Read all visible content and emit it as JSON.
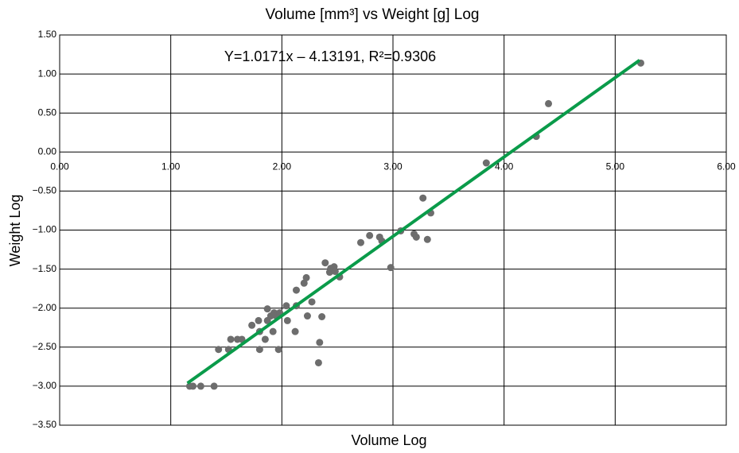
{
  "chart_data": {
    "type": "scatter",
    "title": "Volume [mm³] vs Weight [g] Log",
    "x_label": "Volume Log",
    "y_label": "Weight Log",
    "annotation": "Y=1.0171x – 4.13191, R²=0.9306",
    "xlim": [
      0,
      6
    ],
    "ylim": [
      -3.5,
      1.5
    ],
    "xticks": [
      {
        "value": 0,
        "label": "0.00"
      },
      {
        "value": 1,
        "label": "1.00"
      },
      {
        "value": 2,
        "label": "2.00"
      },
      {
        "value": 3,
        "label": "3.00"
      },
      {
        "value": 4,
        "label": "4.00"
      },
      {
        "value": 5,
        "label": "5.00"
      },
      {
        "value": 6,
        "label": "6.00"
      }
    ],
    "yticks": [
      {
        "value": 1.5,
        "label": "1.50"
      },
      {
        "value": 1,
        "label": "1.00"
      },
      {
        "value": 0.5,
        "label": "0.50"
      },
      {
        "value": 0,
        "label": "0.00"
      },
      {
        "value": -0.5,
        "label": "−0.50"
      },
      {
        "value": -1,
        "label": "−1.00"
      },
      {
        "value": -1.5,
        "label": "−1.50"
      },
      {
        "value": -2,
        "label": "−2.00"
      },
      {
        "value": -2.5,
        "label": "−2.50"
      },
      {
        "value": -3,
        "label": "−3.00"
      },
      {
        "value": -3.5,
        "label": "−3.50"
      }
    ],
    "grid": true,
    "color": "#6d6d6d",
    "x": [
      1.17,
      1.2,
      1.27,
      1.39,
      1.43,
      1.52,
      1.54,
      1.6,
      1.64,
      1.73,
      1.79,
      1.8,
      1.8,
      1.85,
      1.87,
      1.87,
      1.9,
      1.92,
      1.93,
      1.95,
      1.97,
      1.98,
      2.04,
      2.05,
      2.12,
      2.13,
      2.13,
      2.2,
      2.22,
      2.23,
      2.27,
      2.33,
      2.34,
      2.36,
      2.39,
      2.43,
      2.44,
      2.47,
      2.48,
      2.52,
      2.71,
      2.79,
      2.88,
      2.9,
      2.98,
      3.07,
      3.19,
      3.21,
      3.27,
      3.31,
      3.34,
      3.84,
      4.29,
      4.4,
      5.23
    ],
    "values": [
      -3.0,
      -3.0,
      -3.0,
      -3.0,
      -2.53,
      -2.53,
      -2.4,
      -2.4,
      -2.4,
      -2.22,
      -2.16,
      -2.53,
      -2.3,
      -2.4,
      -2.01,
      -2.16,
      -2.1,
      -2.3,
      -2.06,
      -2.1,
      -2.53,
      -2.06,
      -1.97,
      -2.16,
      -2.3,
      -1.97,
      -1.77,
      -1.68,
      -1.61,
      -2.1,
      -1.92,
      -2.7,
      -2.44,
      -2.11,
      -1.42,
      -1.54,
      -1.49,
      -1.47,
      -1.53,
      -1.6,
      -1.16,
      -1.07,
      -1.09,
      -1.14,
      -1.48,
      -1.01,
      -1.05,
      -1.09,
      -0.59,
      -1.12,
      -0.78,
      -0.14,
      0.2,
      0.62,
      1.14
    ],
    "trendline": {
      "x": [
        1.15,
        5.22
      ],
      "values": [
        -2.962,
        1.177
      ],
      "color": "#0a9b4a"
    }
  }
}
